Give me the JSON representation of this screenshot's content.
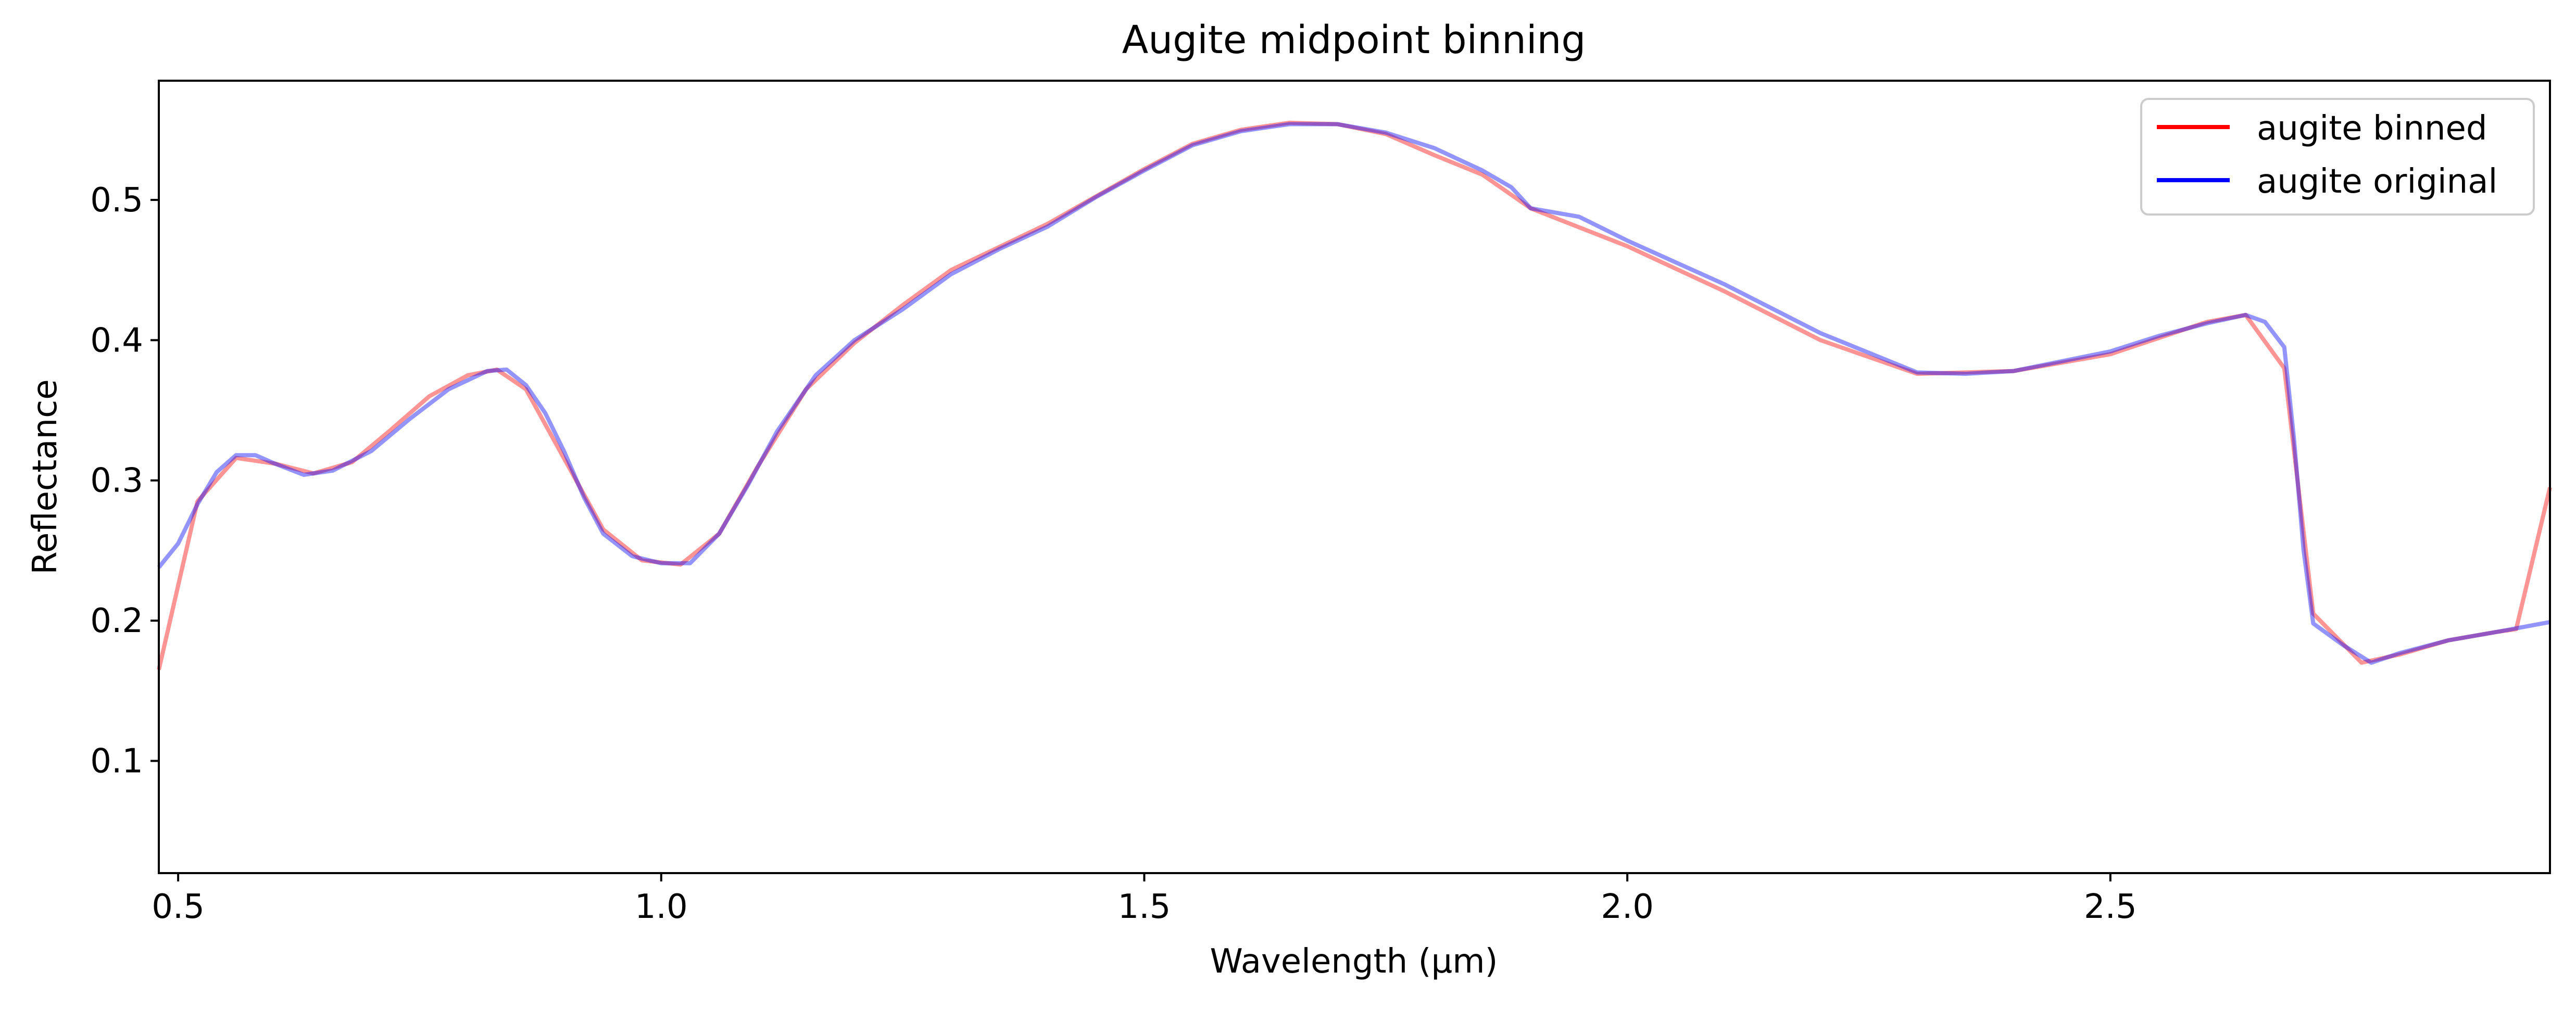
{
  "chart_data": {
    "type": "line",
    "title": "Augite midpoint binning",
    "xlabel": "Wavelength (µm)",
    "ylabel": "Reflectance",
    "xlim": [
      0.48,
      2.955
    ],
    "ylim": [
      0.02,
      0.585
    ],
    "x_ticks": [
      0.5,
      1.0,
      1.5,
      2.0,
      2.5
    ],
    "x_tick_labels": [
      "0.5",
      "1.0",
      "1.5",
      "2.0",
      "2.5"
    ],
    "y_ticks": [
      0.1,
      0.2,
      0.3,
      0.4,
      0.5
    ],
    "y_tick_labels": [
      "0.1",
      "0.2",
      "0.3",
      "0.4",
      "0.5"
    ],
    "grid": false,
    "legend_position": "top-right",
    "series": [
      {
        "name": "augite binned",
        "color": "#ff0000",
        "x": [
          0.48,
          0.52,
          0.56,
          0.6,
          0.64,
          0.68,
          0.72,
          0.76,
          0.8,
          0.83,
          0.86,
          0.9,
          0.94,
          0.98,
          1.02,
          1.06,
          1.1,
          1.15,
          1.2,
          1.25,
          1.3,
          1.4,
          1.5,
          1.55,
          1.6,
          1.65,
          1.7,
          1.75,
          1.8,
          1.85,
          1.9,
          2.0,
          2.1,
          2.2,
          2.3,
          2.4,
          2.5,
          2.6,
          2.64,
          2.68,
          2.71,
          2.76,
          2.8,
          2.85,
          2.9,
          2.92,
          2.955
        ],
        "y": [
          0.165,
          0.285,
          0.316,
          0.312,
          0.305,
          0.313,
          0.336,
          0.36,
          0.375,
          0.379,
          0.365,
          0.315,
          0.265,
          0.243,
          0.24,
          0.262,
          0.31,
          0.365,
          0.398,
          0.425,
          0.45,
          0.483,
          0.522,
          0.54,
          0.55,
          0.555,
          0.554,
          0.547,
          0.532,
          0.518,
          0.494,
          0.467,
          0.435,
          0.4,
          0.376,
          0.378,
          0.39,
          0.413,
          0.418,
          0.38,
          0.205,
          0.17,
          0.176,
          0.186,
          0.192,
          0.194,
          0.295
        ]
      },
      {
        "name": "augite original",
        "color": "#0000ff",
        "x": [
          0.48,
          0.5,
          0.52,
          0.54,
          0.56,
          0.58,
          0.6,
          0.63,
          0.66,
          0.7,
          0.74,
          0.78,
          0.82,
          0.84,
          0.86,
          0.88,
          0.9,
          0.92,
          0.94,
          0.97,
          1.0,
          1.03,
          1.06,
          1.09,
          1.12,
          1.16,
          1.2,
          1.25,
          1.3,
          1.35,
          1.4,
          1.45,
          1.5,
          1.55,
          1.6,
          1.65,
          1.7,
          1.75,
          1.8,
          1.85,
          1.88,
          1.9,
          1.95,
          2.0,
          2.1,
          2.2,
          2.3,
          2.35,
          2.4,
          2.5,
          2.55,
          2.6,
          2.64,
          2.66,
          2.68,
          2.69,
          2.7,
          2.71,
          2.74,
          2.77,
          2.8,
          2.85,
          2.9,
          2.955
        ],
        "y": [
          0.238,
          0.255,
          0.283,
          0.306,
          0.318,
          0.318,
          0.312,
          0.304,
          0.307,
          0.321,
          0.344,
          0.365,
          0.378,
          0.379,
          0.368,
          0.348,
          0.32,
          0.288,
          0.262,
          0.246,
          0.241,
          0.241,
          0.262,
          0.297,
          0.335,
          0.375,
          0.4,
          0.422,
          0.447,
          0.465,
          0.481,
          0.502,
          0.521,
          0.539,
          0.549,
          0.554,
          0.554,
          0.548,
          0.537,
          0.521,
          0.509,
          0.494,
          0.488,
          0.471,
          0.44,
          0.405,
          0.377,
          0.376,
          0.378,
          0.392,
          0.403,
          0.412,
          0.418,
          0.413,
          0.395,
          0.33,
          0.25,
          0.198,
          0.183,
          0.17,
          0.177,
          0.186,
          0.192,
          0.199
        ]
      }
    ]
  }
}
